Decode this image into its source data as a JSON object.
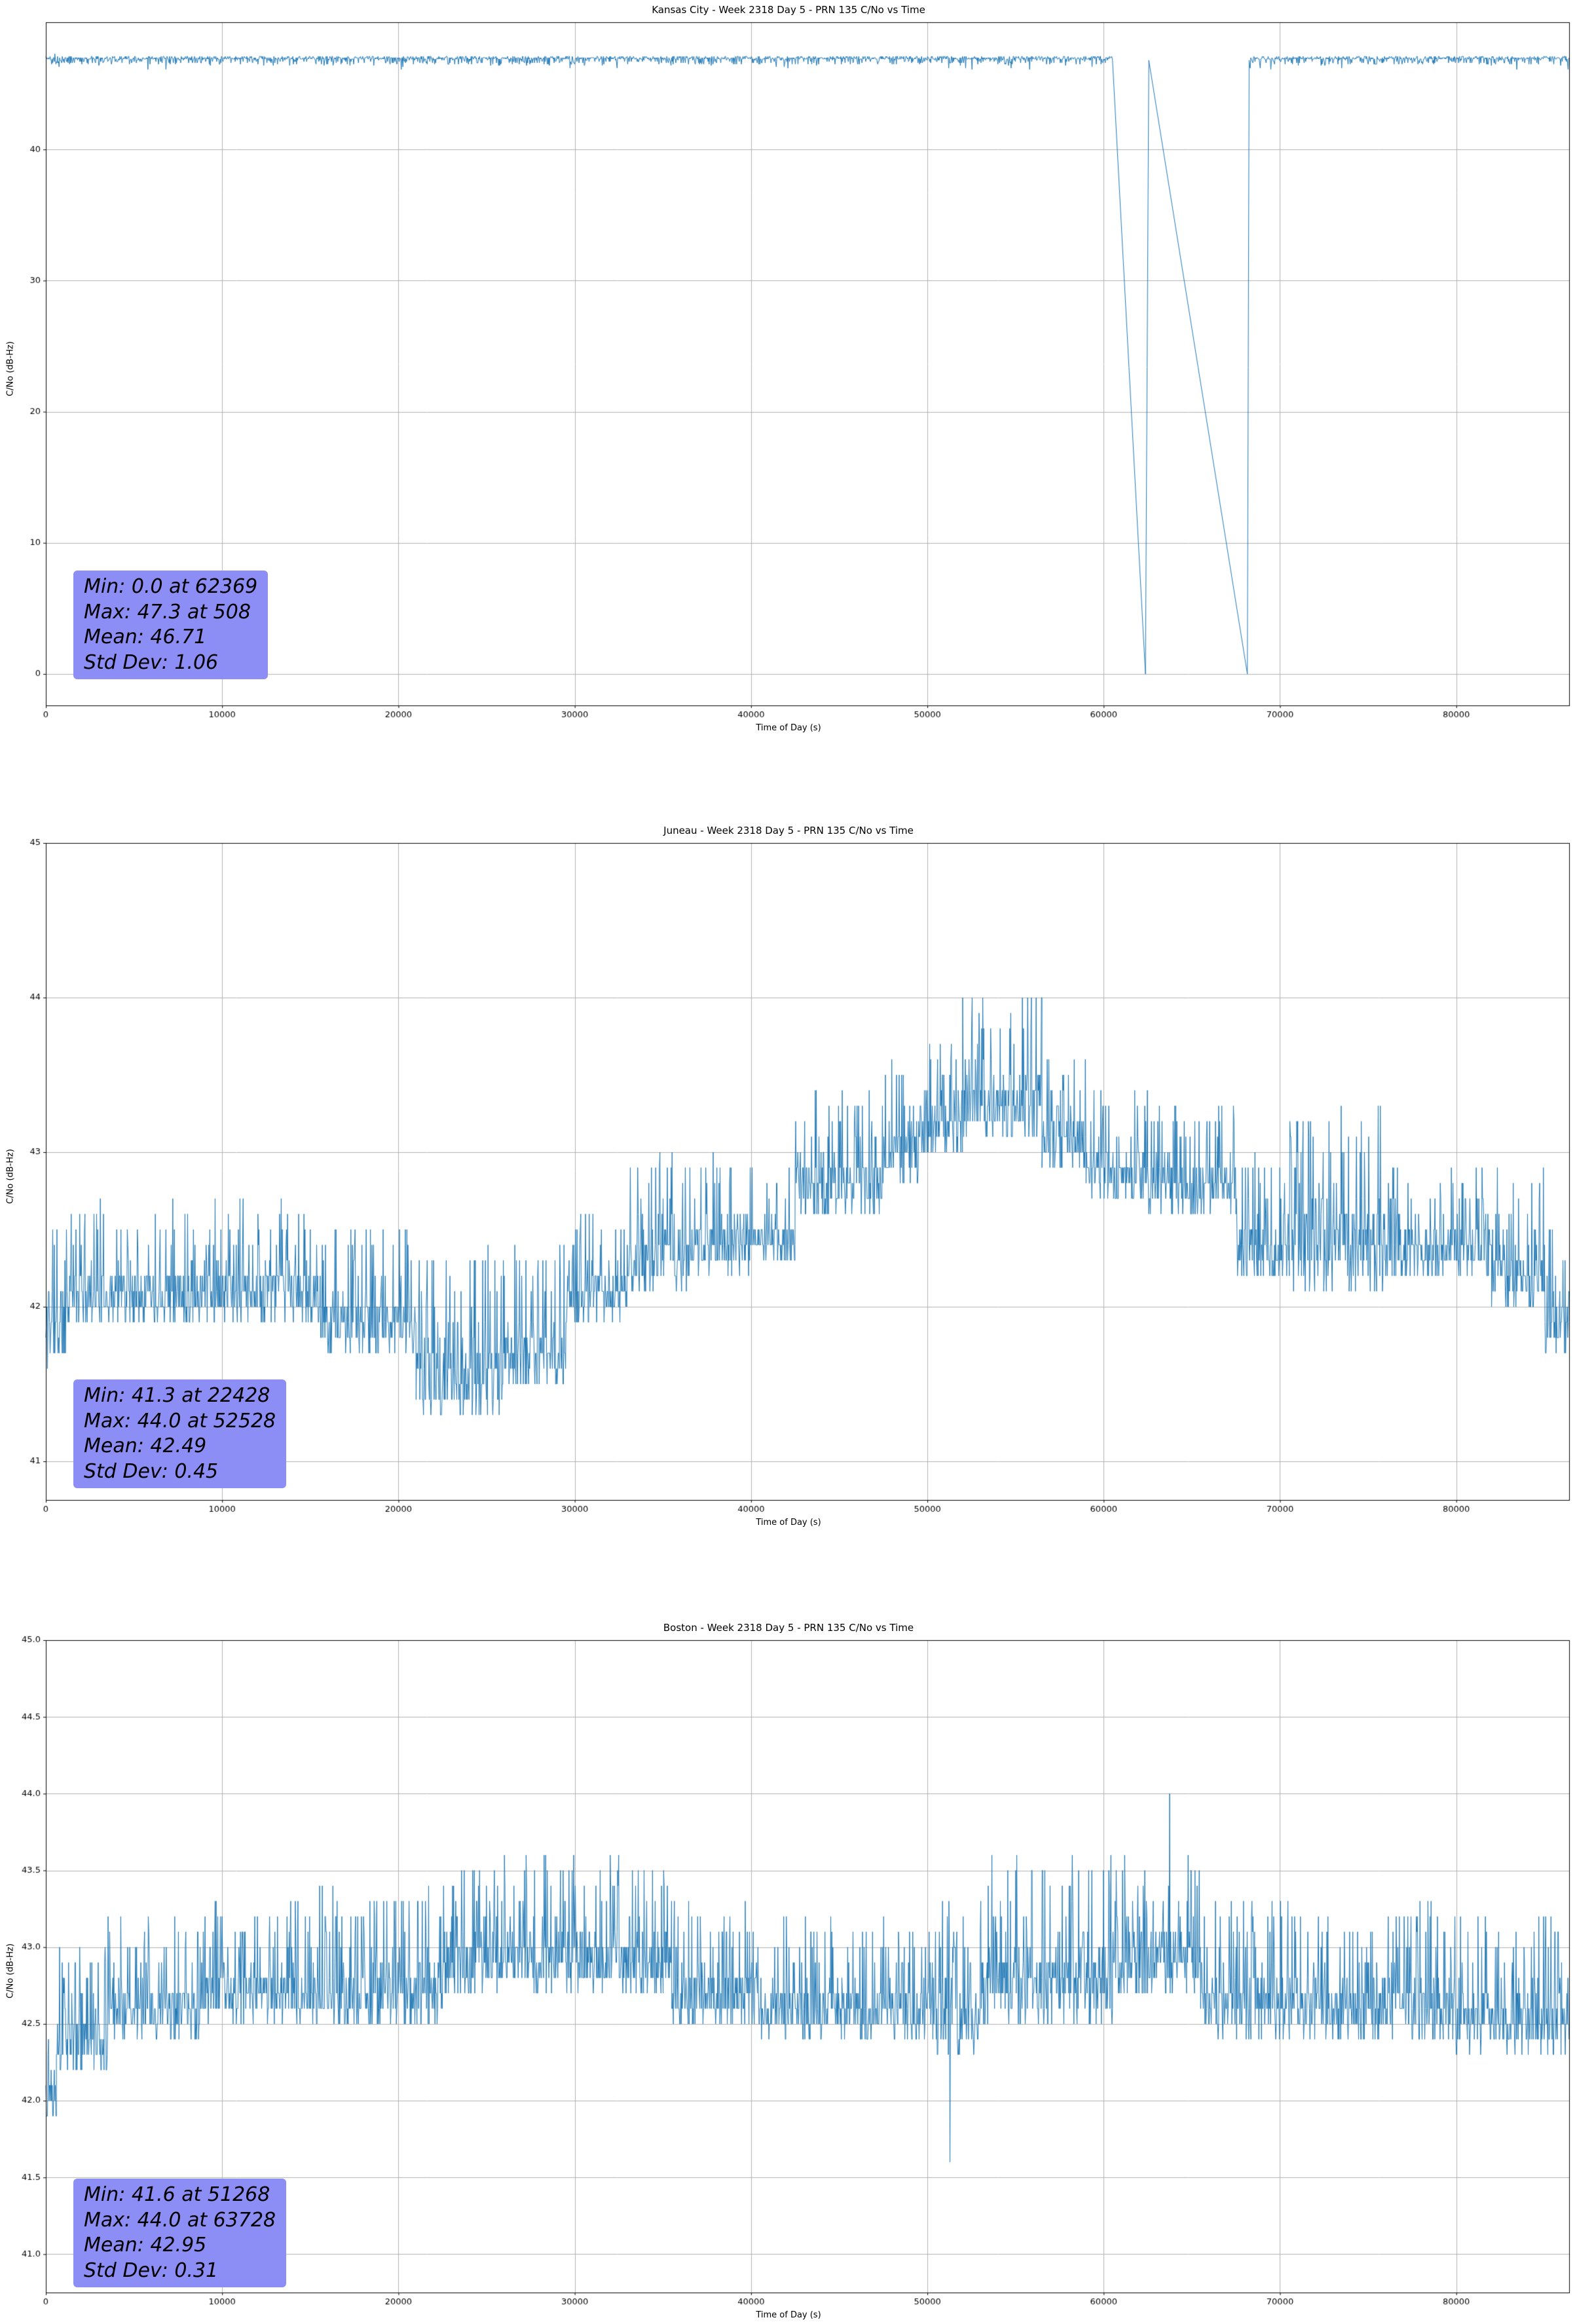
{
  "page": {
    "background": "#ffffff"
  },
  "chart_data": [
    {
      "type": "line",
      "title": "Kansas City - Week 2318 Day 5 - PRN 135 C/No vs Time",
      "xlabel": "Time of Day (s)",
      "ylabel": "C/No (dB-Hz)",
      "xlim": [
        0,
        86400
      ],
      "ylim": [
        -2.4,
        49.7
      ],
      "xticks": [
        0,
        10000,
        20000,
        30000,
        40000,
        50000,
        60000,
        70000,
        80000
      ],
      "xtick_labels": [
        "0",
        "10000",
        "20000",
        "30000",
        "40000",
        "50000",
        "60000",
        "70000",
        "80000"
      ],
      "yticks": [
        0,
        10,
        20,
        30,
        40
      ],
      "ytick_labels": [
        "0",
        "10",
        "20",
        "30",
        "40"
      ],
      "grid": true,
      "legend": "none",
      "line_color": "#1f77b4",
      "seed": 7,
      "series": {
        "kind": "noisy-line",
        "step": 30,
        "quantize": 0.1,
        "parts": [
          {
            "type": "noise",
            "x0": 0,
            "x1": 60500,
            "low": 46.5,
            "high": 47.1,
            "bias": "high",
            "dip_p": 0.05,
            "dip": 0.45
          },
          {
            "type": "polyline",
            "points": [
              [
                60500,
                46.8
              ],
              [
                62369,
                0
              ],
              [
                62560,
                46.8
              ],
              [
                68150,
                0
              ],
              [
                68250,
                46.8
              ]
            ]
          },
          {
            "type": "noise",
            "x0": 68250,
            "x1": 86400,
            "low": 46.5,
            "high": 47.1,
            "bias": "high",
            "dip_p": 0.05,
            "dip": 0.45
          }
        ],
        "marks": [
          [
            508,
            47.3
          ],
          [
            62369,
            0
          ]
        ]
      },
      "stats": {
        "min": 0.0,
        "min_at": 62369,
        "max": 47.3,
        "max_at": 508,
        "mean": 46.71,
        "std_dev": 1.06
      },
      "stats_box": {
        "bg": "#8d8df6",
        "lines": [
          "Min: 0.0 at 62369",
          "Max: 47.3 at 508",
          "Mean: 46.71",
          "Std Dev: 1.06"
        ]
      }
    },
    {
      "type": "line",
      "title": "Juneau - Week 2318 Day 5 - PRN 135 C/No vs Time",
      "xlabel": "Time of Day (s)",
      "ylabel": "C/No (dB-Hz)",
      "xlim": [
        0,
        86400
      ],
      "ylim": [
        40.75,
        45.0
      ],
      "xticks": [
        0,
        10000,
        20000,
        30000,
        40000,
        50000,
        60000,
        70000,
        80000
      ],
      "xtick_labels": [
        "0",
        "10000",
        "20000",
        "30000",
        "40000",
        "50000",
        "60000",
        "70000",
        "80000"
      ],
      "yticks": [
        41,
        42,
        43,
        44,
        45
      ],
      "ytick_labels": [
        "41",
        "42",
        "43",
        "44",
        "45"
      ],
      "grid": true,
      "legend": "none",
      "line_color": "#1f77b4",
      "seed": 11,
      "series": {
        "kind": "noisy-line",
        "step": 30,
        "quantize": 0.1,
        "parts": [
          {
            "type": "noise",
            "x0": 0,
            "x1": 1200,
            "low": 41.6,
            "high": 42.7,
            "bias": "low"
          },
          {
            "type": "noise",
            "x0": 1200,
            "x1": 15500,
            "low": 41.9,
            "high": 42.7,
            "bias": "low"
          },
          {
            "type": "noise",
            "x0": 15500,
            "x1": 21000,
            "low": 41.7,
            "high": 42.5,
            "bias": "low"
          },
          {
            "type": "noise",
            "x0": 21000,
            "x1": 26000,
            "low": 41.3,
            "high": 42.4,
            "bias": "low"
          },
          {
            "type": "noise",
            "x0": 26000,
            "x1": 29500,
            "low": 41.5,
            "high": 42.4,
            "bias": "low"
          },
          {
            "type": "noise",
            "x0": 29500,
            "x1": 33000,
            "low": 41.9,
            "high": 42.6,
            "bias": "low"
          },
          {
            "type": "noise",
            "x0": 33000,
            "x1": 36500,
            "low": 42.1,
            "high": 43.0,
            "bias": "low"
          },
          {
            "type": "noise",
            "x0": 36500,
            "x1": 40000,
            "low": 42.2,
            "high": 43.0,
            "bias": "low"
          },
          {
            "type": "noise",
            "x0": 40000,
            "x1": 42500,
            "low": 42.3,
            "high": 42.9,
            "bias": "low"
          },
          {
            "type": "noise",
            "x0": 42500,
            "x1": 47500,
            "low": 42.6,
            "high": 43.4,
            "bias": "low"
          },
          {
            "type": "noise",
            "x0": 47500,
            "x1": 49500,
            "low": 42.8,
            "high": 43.6,
            "bias": "low"
          },
          {
            "type": "noise",
            "x0": 49500,
            "x1": 52000,
            "low": 43.0,
            "high": 43.7,
            "bias": "low"
          },
          {
            "type": "noise",
            "x0": 52000,
            "x1": 56500,
            "low": 43.1,
            "high": 44.0,
            "bias": "low"
          },
          {
            "type": "noise",
            "x0": 56500,
            "x1": 59000,
            "low": 42.9,
            "high": 43.6,
            "bias": "low"
          },
          {
            "type": "noise",
            "x0": 59000,
            "x1": 62500,
            "low": 42.7,
            "high": 43.4,
            "bias": "low"
          },
          {
            "type": "noise",
            "x0": 62500,
            "x1": 67500,
            "low": 42.6,
            "high": 43.3,
            "bias": "low"
          },
          {
            "type": "noise",
            "x0": 67500,
            "x1": 70500,
            "low": 42.2,
            "high": 43.0,
            "bias": "low"
          },
          {
            "type": "noise",
            "x0": 70500,
            "x1": 76000,
            "low": 42.1,
            "high": 43.3,
            "bias": "low"
          },
          {
            "type": "noise",
            "x0": 76000,
            "x1": 82000,
            "low": 42.2,
            "high": 42.9,
            "bias": "low"
          },
          {
            "type": "noise",
            "x0": 82000,
            "x1": 85000,
            "low": 42.0,
            "high": 42.9,
            "bias": "low"
          },
          {
            "type": "noise",
            "x0": 85000,
            "x1": 86400,
            "low": 41.7,
            "high": 42.5,
            "bias": "low"
          }
        ],
        "marks": [
          [
            22428,
            41.3
          ],
          [
            52528,
            44.0
          ]
        ]
      },
      "stats": {
        "min": 41.3,
        "min_at": 22428,
        "max": 44.0,
        "max_at": 52528,
        "mean": 42.49,
        "std_dev": 0.45
      },
      "stats_box": {
        "bg": "#8d8df6",
        "lines": [
          "Min: 41.3 at 22428",
          "Max: 44.0 at 52528",
          "Mean: 42.49",
          "Std Dev: 0.45"
        ]
      }
    },
    {
      "type": "line",
      "title": "Boston - Week 2318 Day 5 - PRN 135 C/No vs Time",
      "xlabel": "Time of Day (s)",
      "ylabel": "C/No (dB-Hz)",
      "xlim": [
        0,
        86400
      ],
      "ylim": [
        40.75,
        45.0
      ],
      "xticks": [
        0,
        10000,
        20000,
        30000,
        40000,
        50000,
        60000,
        70000,
        80000
      ],
      "xtick_labels": [
        "0",
        "10000",
        "20000",
        "30000",
        "40000",
        "50000",
        "60000",
        "70000",
        "80000"
      ],
      "yticks": [
        41.0,
        41.5,
        42.0,
        42.5,
        43.0,
        43.5,
        44.0,
        44.5,
        45.0
      ],
      "ytick_labels": [
        "41.0",
        "41.5",
        "42.0",
        "42.5",
        "43.0",
        "43.5",
        "44.0",
        "44.5",
        "45.0"
      ],
      "grid": true,
      "legend": "none",
      "line_color": "#1f77b4",
      "seed": 13,
      "series": {
        "kind": "noisy-line",
        "step": 30,
        "quantize": 0.1,
        "parts": [
          {
            "type": "noise",
            "x0": 0,
            "x1": 600,
            "low": 41.9,
            "high": 42.6,
            "bias": "low"
          },
          {
            "type": "noise",
            "x0": 600,
            "x1": 3500,
            "low": 42.2,
            "high": 43.0,
            "bias": "low"
          },
          {
            "type": "noise",
            "x0": 3500,
            "x1": 9000,
            "low": 42.4,
            "high": 43.2,
            "bias": "low"
          },
          {
            "type": "noise",
            "x0": 9000,
            "x1": 14000,
            "low": 42.5,
            "high": 43.3,
            "bias": "low"
          },
          {
            "type": "noise",
            "x0": 14000,
            "x1": 22500,
            "low": 42.5,
            "high": 43.4,
            "bias": "low"
          },
          {
            "type": "noise",
            "x0": 22500,
            "x1": 35500,
            "low": 42.7,
            "high": 43.6,
            "bias": "low"
          },
          {
            "type": "noise",
            "x0": 35500,
            "x1": 40500,
            "low": 42.5,
            "high": 43.3,
            "bias": "low"
          },
          {
            "type": "noise",
            "x0": 40500,
            "x1": 50500,
            "low": 42.4,
            "high": 43.2,
            "bias": "low"
          },
          {
            "type": "noise",
            "x0": 50500,
            "x1": 53000,
            "low": 42.3,
            "high": 43.3,
            "bias": "low"
          },
          {
            "type": "noise",
            "x0": 53000,
            "x1": 60500,
            "low": 42.5,
            "high": 43.6,
            "bias": "low"
          },
          {
            "type": "noise",
            "x0": 60500,
            "x1": 65500,
            "low": 42.7,
            "high": 43.6,
            "bias": "low"
          },
          {
            "type": "noise",
            "x0": 65500,
            "x1": 70500,
            "low": 42.4,
            "high": 43.3,
            "bias": "low"
          },
          {
            "type": "noise",
            "x0": 70500,
            "x1": 80000,
            "low": 42.4,
            "high": 43.3,
            "bias": "low"
          },
          {
            "type": "noise",
            "x0": 80000,
            "x1": 86400,
            "low": 42.3,
            "high": 43.2,
            "bias": "low"
          }
        ],
        "marks": [
          [
            51268,
            41.6
          ],
          [
            63728,
            44.0
          ]
        ]
      },
      "stats": {
        "min": 41.6,
        "min_at": 51268,
        "max": 44.0,
        "max_at": 63728,
        "mean": 42.95,
        "std_dev": 0.31
      },
      "stats_box": {
        "bg": "#8d8df6",
        "lines": [
          "Min: 41.6 at 51268",
          "Max: 44.0 at 63728",
          "Mean: 42.95",
          "Std Dev: 0.31"
        ]
      }
    }
  ]
}
